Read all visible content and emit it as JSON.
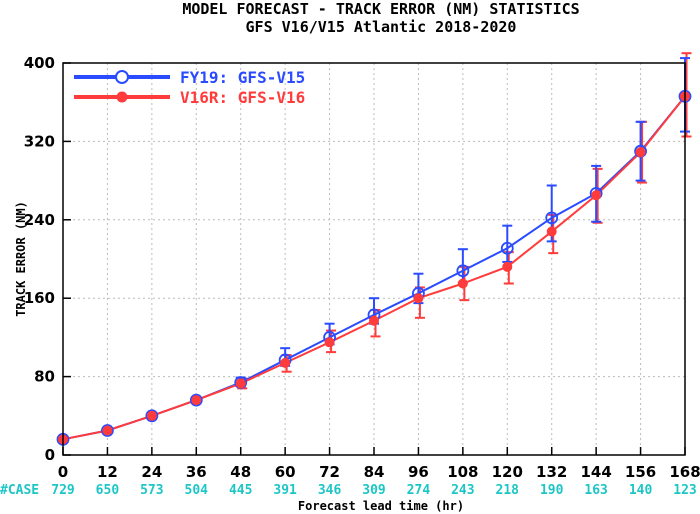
{
  "chart_data": {
    "type": "line",
    "title": "MODEL FORECAST - TRACK ERROR (NM) STATISTICS",
    "subtitle": "GFS V16/V15 Atlantic 2018-2020",
    "xlabel": "Forecast lead time (hr)",
    "ylabel": "TRACK ERROR (NM)",
    "x": [
      0,
      12,
      24,
      36,
      48,
      60,
      72,
      84,
      96,
      108,
      120,
      132,
      144,
      156,
      168
    ],
    "xlim": [
      0,
      168
    ],
    "ylim": [
      0,
      400
    ],
    "yticks": [
      0,
      80,
      160,
      240,
      320,
      400
    ],
    "grid": true,
    "legend_position": "top-left",
    "case_label": "#CASE",
    "cases": [
      "729",
      "650",
      "573",
      "504",
      "445",
      "391",
      "346",
      "309",
      "274",
      "243",
      "218",
      "190",
      "163",
      "140",
      "123"
    ],
    "series": [
      {
        "name": "FY19: GFS-V15",
        "color": "#2a4bff",
        "marker": "open-circle",
        "values": [
          16,
          25,
          40,
          56,
          74,
          97,
          120,
          143,
          165,
          188,
          211,
          242,
          267,
          310,
          366
        ],
        "err_low": [
          null,
          null,
          null,
          null,
          70,
          91,
          113,
          134,
          155,
          176,
          197,
          218,
          238,
          280,
          330
        ],
        "err_high": [
          null,
          null,
          null,
          null,
          79,
          109,
          134,
          160,
          185,
          210,
          234,
          275,
          295,
          340,
          405
        ]
      },
      {
        "name": "V16R: GFS-V16",
        "color": "#ff3b3b",
        "marker": "filled-circle",
        "values": [
          16,
          25,
          40,
          56,
          73,
          94,
          115,
          137,
          160,
          175,
          192,
          228,
          265,
          309,
          366
        ],
        "err_low": [
          null,
          null,
          null,
          null,
          68,
          85,
          105,
          121,
          140,
          158,
          175,
          206,
          237,
          278,
          325
        ],
        "err_high": [
          null,
          null,
          null,
          null,
          78,
          102,
          127,
          148,
          171,
          192,
          207,
          245,
          292,
          340,
          410
        ]
      }
    ]
  }
}
